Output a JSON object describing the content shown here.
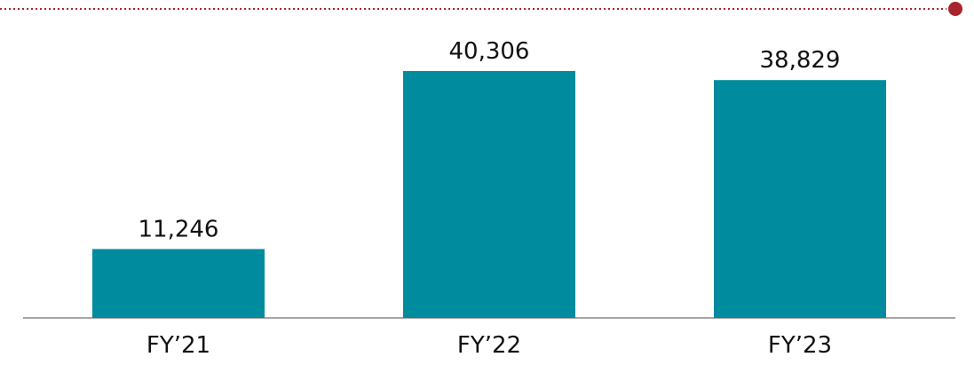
{
  "chart_data": {
    "type": "bar",
    "categories": [
      "FY’21",
      "FY’22",
      "FY’23"
    ],
    "values": [
      11246,
      40306,
      38829
    ],
    "value_labels": [
      "11,246",
      "40,306",
      "38,829"
    ],
    "color": "#008c9e"
  }
}
